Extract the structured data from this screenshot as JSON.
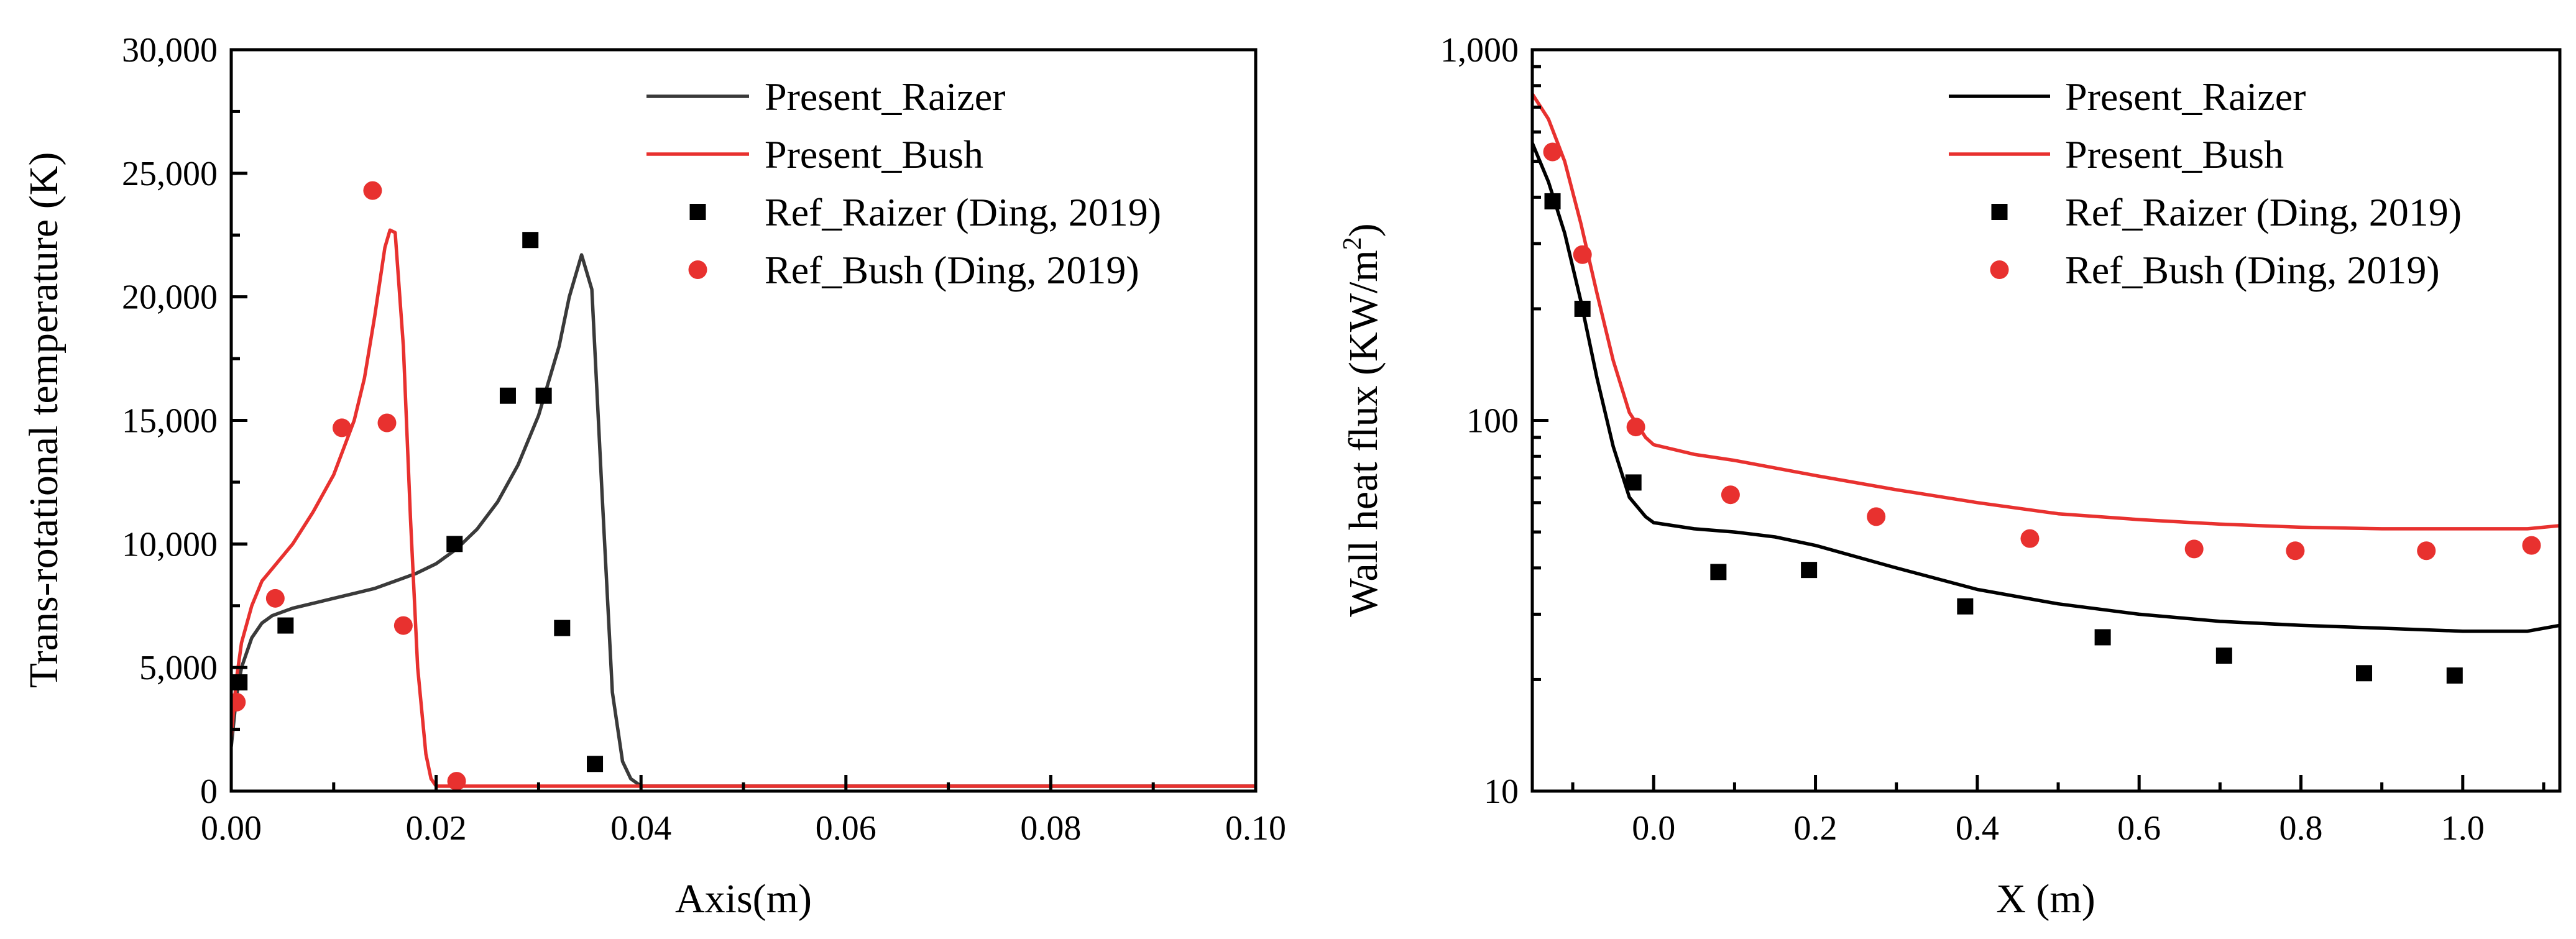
{
  "chart_data": [
    {
      "type": "line",
      "title": "",
      "xlabel": "Axis(m)",
      "ylabel": "Trans-rotational temperature (K)",
      "xlim": [
        0,
        0.1
      ],
      "ylim": [
        0,
        30000
      ],
      "yscale": "linear",
      "grid": false,
      "legend_position": "top-right",
      "xticks": [
        0,
        0.02,
        0.04,
        0.06,
        0.08,
        0.1
      ],
      "xtick_labels": [
        "0.00",
        "0.02",
        "0.04",
        "0.06",
        "0.08",
        "0.10"
      ],
      "yticks": [
        0,
        5000,
        10000,
        15000,
        20000,
        25000,
        30000
      ],
      "ytick_labels": [
        "0",
        "5,000",
        "10,000",
        "15,000",
        "20,000",
        "25,000",
        "30,000"
      ],
      "series": [
        {
          "name": "Present_Raizer",
          "kind": "line",
          "color": "#3a3a3a",
          "points": [
            [
              0,
              1800
            ],
            [
              0.0005,
              3800
            ],
            [
              0.001,
              5000
            ],
            [
              0.002,
              6200
            ],
            [
              0.003,
              6800
            ],
            [
              0.004,
              7100
            ],
            [
              0.006,
              7400
            ],
            [
              0.008,
              7600
            ],
            [
              0.01,
              7800
            ],
            [
              0.012,
              8000
            ],
            [
              0.014,
              8200
            ],
            [
              0.016,
              8500
            ],
            [
              0.018,
              8800
            ],
            [
              0.02,
              9200
            ],
            [
              0.022,
              9800
            ],
            [
              0.024,
              10600
            ],
            [
              0.026,
              11700
            ],
            [
              0.028,
              13200
            ],
            [
              0.03,
              15200
            ],
            [
              0.032,
              18000
            ],
            [
              0.033,
              20000
            ],
            [
              0.0342,
              21700
            ],
            [
              0.0352,
              20300
            ],
            [
              0.0362,
              12000
            ],
            [
              0.0372,
              4000
            ],
            [
              0.0382,
              1200
            ],
            [
              0.039,
              500
            ],
            [
              0.04,
              200
            ],
            [
              0.05,
              200
            ],
            [
              0.1,
              200
            ]
          ]
        },
        {
          "name": "Present_Bush",
          "kind": "line",
          "color": "#e8312f",
          "points": [
            [
              0,
              2200
            ],
            [
              0.0005,
              4500
            ],
            [
              0.001,
              6000
            ],
            [
              0.002,
              7500
            ],
            [
              0.003,
              8500
            ],
            [
              0.004,
              9000
            ],
            [
              0.006,
              10000
            ],
            [
              0.008,
              11300
            ],
            [
              0.01,
              12800
            ],
            [
              0.012,
              15000
            ],
            [
              0.013,
              16700
            ],
            [
              0.014,
              19200
            ],
            [
              0.015,
              22000
            ],
            [
              0.0155,
              22700
            ],
            [
              0.016,
              22600
            ],
            [
              0.0168,
              18000
            ],
            [
              0.0175,
              11000
            ],
            [
              0.0182,
              5000
            ],
            [
              0.019,
              1500
            ],
            [
              0.0195,
              500
            ],
            [
              0.02,
              200
            ],
            [
              0.03,
              200
            ],
            [
              0.1,
              200
            ]
          ]
        },
        {
          "name": "Ref_Raizer (Ding, 2019)",
          "kind": "scatter",
          "marker": "square",
          "color": "#000000",
          "points": [
            [
              0.0008,
              4400
            ],
            [
              0.0053,
              6700
            ],
            [
              0.0218,
              10000
            ],
            [
              0.027,
              16000
            ],
            [
              0.0292,
              22300
            ],
            [
              0.0305,
              16000
            ],
            [
              0.0323,
              6600
            ],
            [
              0.0355,
              1100
            ]
          ]
        },
        {
          "name": "Ref_Bush (Ding, 2019)",
          "kind": "scatter",
          "marker": "circle",
          "color": "#e8312f",
          "points": [
            [
              0.0005,
              3600
            ],
            [
              0.0043,
              7800
            ],
            [
              0.0108,
              14700
            ],
            [
              0.0138,
              24300
            ],
            [
              0.0152,
              14900
            ],
            [
              0.0168,
              6700
            ],
            [
              0.022,
              400
            ]
          ]
        }
      ]
    },
    {
      "type": "line",
      "title": "",
      "xlabel": "X (m)",
      "ylabel_main": "Wall heat flux (KW/m",
      "ylabel_sup": "2",
      "ylabel_end": ")",
      "xlim": [
        -0.15,
        1.12
      ],
      "ylim": [
        10,
        1000
      ],
      "yscale": "log",
      "grid": false,
      "legend_position": "top-right",
      "xticks": [
        0,
        0.2,
        0.4,
        0.6,
        0.8,
        1
      ],
      "xtick_labels": [
        "0.0",
        "0.2",
        "0.4",
        "0.6",
        "0.8",
        "1.0"
      ],
      "yticks": [
        10,
        100,
        1000
      ],
      "ytick_labels": [
        "10",
        "100",
        "1,000"
      ],
      "series": [
        {
          "name": "Present_Raizer",
          "kind": "line",
          "color": "#000000",
          "points": [
            [
              -0.15,
              560
            ],
            [
              -0.13,
              440
            ],
            [
              -0.11,
              320
            ],
            [
              -0.09,
              210
            ],
            [
              -0.07,
              130
            ],
            [
              -0.05,
              85
            ],
            [
              -0.03,
              62
            ],
            [
              -0.01,
              55
            ],
            [
              0.0,
              53
            ],
            [
              0.05,
              51
            ],
            [
              0.1,
              50
            ],
            [
              0.15,
              48.5
            ],
            [
              0.2,
              46
            ],
            [
              0.3,
              40
            ],
            [
              0.4,
              35
            ],
            [
              0.5,
              32
            ],
            [
              0.6,
              30
            ],
            [
              0.7,
              28.7
            ],
            [
              0.8,
              28
            ],
            [
              0.9,
              27.5
            ],
            [
              1.0,
              27
            ],
            [
              1.08,
              27
            ],
            [
              1.12,
              28
            ]
          ]
        },
        {
          "name": "Present_Bush",
          "kind": "line",
          "color": "#e8312f",
          "points": [
            [
              -0.15,
              760
            ],
            [
              -0.13,
              650
            ],
            [
              -0.11,
              500
            ],
            [
              -0.09,
              340
            ],
            [
              -0.07,
              220
            ],
            [
              -0.05,
              145
            ],
            [
              -0.03,
              105
            ],
            [
              -0.01,
              90
            ],
            [
              0.0,
              86
            ],
            [
              0.05,
              81
            ],
            [
              0.1,
              78
            ],
            [
              0.2,
              71
            ],
            [
              0.3,
              65
            ],
            [
              0.4,
              60
            ],
            [
              0.5,
              56
            ],
            [
              0.6,
              54
            ],
            [
              0.7,
              52.5
            ],
            [
              0.8,
              51.5
            ],
            [
              0.9,
              51
            ],
            [
              1.0,
              51
            ],
            [
              1.08,
              51
            ],
            [
              1.12,
              52
            ]
          ]
        },
        {
          "name": "Ref_Raizer (Ding, 2019)",
          "kind": "scatter",
          "marker": "square",
          "color": "#000000",
          "points": [
            [
              -0.125,
              390
            ],
            [
              -0.088,
              200
            ],
            [
              -0.025,
              68
            ],
            [
              0.08,
              39
            ],
            [
              0.192,
              39.5
            ],
            [
              0.385,
              31.5
            ],
            [
              0.555,
              26
            ],
            [
              0.705,
              23.2
            ],
            [
              0.878,
              20.8
            ],
            [
              0.99,
              20.5
            ]
          ]
        },
        {
          "name": "Ref_Bush (Ding, 2019)",
          "kind": "scatter",
          "marker": "circle",
          "color": "#e8312f",
          "points": [
            [
              -0.125,
              530
            ],
            [
              -0.088,
              280
            ],
            [
              -0.022,
              96
            ],
            [
              0.095,
              63
            ],
            [
              0.275,
              55
            ],
            [
              0.465,
              48
            ],
            [
              0.668,
              45
            ],
            [
              0.793,
              44.5
            ],
            [
              0.955,
              44.5
            ],
            [
              1.085,
              46
            ]
          ]
        }
      ]
    }
  ]
}
